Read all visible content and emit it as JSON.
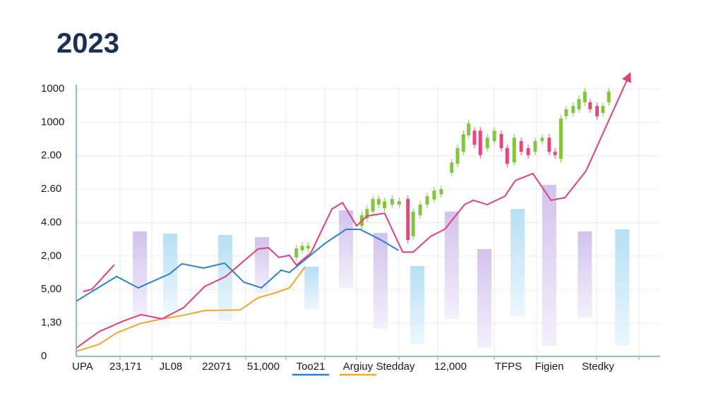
{
  "chart_data": {
    "type": "line",
    "title": "2023",
    "categories": [
      "UPA",
      "23,171",
      "JL08",
      "22071",
      "51,000",
      "Stedday",
      "12,000",
      "TFPS",
      "Figien",
      "Stedky"
    ],
    "xlim": [
      0,
      100
    ],
    "ylim": [
      0,
      8
    ],
    "yticks": [
      0,
      {
        "value": 1,
        "label": "1,30"
      },
      {
        "value": 2,
        "label": "5,00"
      },
      {
        "value": 3,
        "label": "2,00"
      },
      {
        "value": 4,
        "label": "4.00"
      },
      {
        "value": 5,
        "label": "2.60"
      },
      {
        "value": 6,
        "label": "2.00"
      },
      {
        "value": 7,
        "label": "1000"
      },
      {
        "value": 8,
        "label": "1000"
      }
    ],
    "grid": true,
    "series": [
      {
        "name": "Too21",
        "color": "#2f80c8",
        "x": [
          0,
          2.7,
          6.9,
          10.6,
          16.0,
          18.1,
          21.8,
          25.4,
          28.7,
          31.7,
          35.1,
          36.5,
          42.6,
          46.2,
          48.6,
          52.2,
          55.2
        ],
        "values": [
          1.65,
          1.94,
          2.39,
          2.05,
          2.47,
          2.77,
          2.64,
          2.79,
          2.22,
          2.05,
          2.58,
          2.51,
          3.38,
          3.8,
          3.8,
          3.48,
          3.17
        ]
      },
      {
        "name": "Argiuy",
        "color": "#f0a82a",
        "x": [
          0,
          3.9,
          6.9,
          11.1,
          14.7,
          18.4,
          22.0,
          28.1,
          31.1,
          34.1,
          36.5,
          39.2
        ],
        "values": [
          0.15,
          0.36,
          0.7,
          0.99,
          1.12,
          1.23,
          1.37,
          1.39,
          1.75,
          1.9,
          2.05,
          2.68
        ]
      },
      {
        "color": "#e0407a",
        "arrow": true,
        "x": [
          0,
          3.9,
          8.1,
          11.1,
          14.7,
          18.4,
          22.0,
          25.6,
          31.1,
          32.9,
          34.7,
          36.5,
          37.7,
          40.2,
          43.8,
          45.6,
          48.0,
          49.8,
          52.8,
          55.9,
          57.7,
          60.7,
          63.1,
          66.5,
          68.0,
          70.4,
          73.4,
          75.2,
          78.2,
          81.3,
          83.7,
          87.3,
          94.6
        ],
        "values": [
          0.25,
          0.74,
          1.06,
          1.25,
          1.12,
          1.46,
          2.09,
          2.39,
          3.21,
          3.25,
          2.96,
          3.02,
          2.73,
          3.1,
          4.41,
          4.6,
          3.9,
          4.2,
          4.28,
          3.12,
          3.12,
          3.59,
          3.8,
          4.54,
          4.67,
          4.54,
          4.79,
          5.26,
          5.47,
          4.67,
          4.75,
          5.55,
          8.37
        ]
      },
      {
        "color": "#e0407a",
        "x": [
          1.2,
          2.7,
          6.5
        ],
        "values": [
          1.94,
          2.01,
          2.74
        ]
      }
    ],
    "ranges": [
      {
        "color": "#c9b9ea",
        "x": [
          10.9,
          31.8,
          46.2,
          52.1,
          64.3,
          69.9,
          81.0,
          87.1
        ],
        "low": [
          1.16,
          1.9,
          2.05,
          0.84,
          1.12,
          0.27,
          0.32,
          1.16
        ],
        "high": [
          3.74,
          3.57,
          4.37,
          3.69,
          4.33,
          3.21,
          5.13,
          3.74
        ]
      },
      {
        "color": "#a9d9f2",
        "x": [
          16.1,
          25.5,
          40.3,
          58.4,
          75.6,
          93.5
        ],
        "low": [
          1.37,
          1.06,
          1.41,
          0.36,
          1.2,
          0.32
        ],
        "high": [
          3.67,
          3.63,
          2.68,
          2.7,
          4.41,
          3.8
        ]
      }
    ],
    "candles": {
      "up_color": "#84c441",
      "down_color": "#e8467a",
      "x": [
        37.7,
        38.7,
        39.7,
        48.9,
        49.8,
        50.8,
        51.8,
        52.8,
        54.1,
        55.3,
        56.8,
        57.7,
        58.9,
        60.1,
        61.3,
        62.5,
        64.3,
        65.3,
        66.3,
        67.2,
        68.2,
        69.2,
        70.4,
        71.6,
        72.8,
        73.8,
        75.0,
        76.2,
        77.4,
        78.6,
        79.8,
        81.0,
        82.0,
        83.0,
        83.9,
        85.1,
        86.1,
        87.1,
        88.0,
        89.2,
        90.2,
        91.2
      ],
      "open": [
        2.96,
        3.17,
        3.23,
        3.9,
        4.12,
        4.33,
        4.54,
        4.43,
        4.54,
        4.54,
        4.71,
        3.59,
        4.22,
        4.54,
        4.69,
        4.85,
        5.49,
        5.76,
        6.12,
        6.61,
        6.75,
        6.75,
        6.23,
        6.44,
        6.65,
        6.23,
        5.8,
        6.44,
        6.23,
        6.12,
        6.44,
        6.54,
        6.12,
        5.91,
        7.18,
        7.28,
        7.39,
        7.6,
        7.6,
        7.49,
        7.28,
        7.6
      ],
      "close": [
        3.23,
        3.31,
        3.31,
        4.22,
        4.41,
        4.71,
        4.71,
        4.64,
        4.71,
        4.64,
        3.48,
        4.33,
        4.54,
        4.79,
        4.96,
        5.0,
        5.8,
        6.23,
        6.65,
        6.97,
        6.33,
        6.02,
        6.54,
        6.75,
        6.23,
        5.76,
        6.54,
        6.12,
        6.02,
        6.44,
        6.54,
        6.12,
        6.02,
        7.11,
        7.39,
        7.49,
        7.7,
        7.92,
        7.39,
        7.18,
        7.49,
        7.92
      ]
    }
  }
}
